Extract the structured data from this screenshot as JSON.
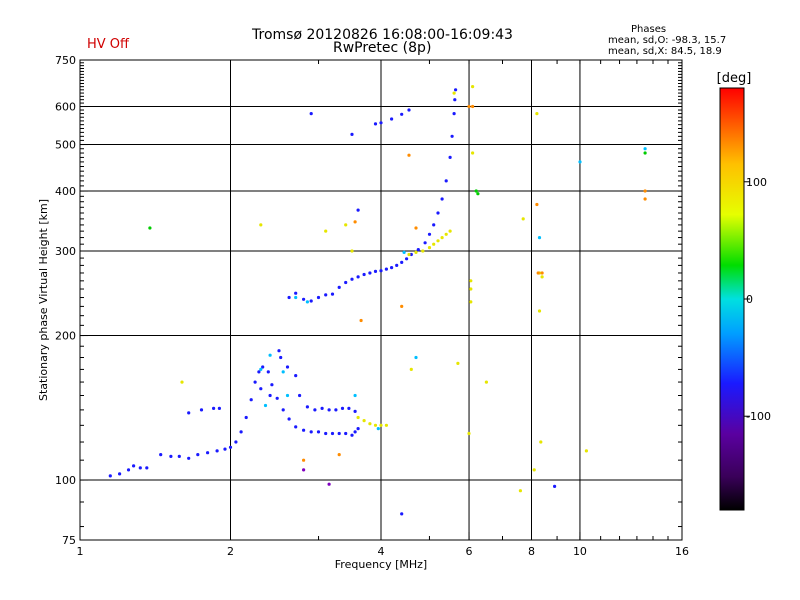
{
  "header": {
    "status": "HV Off",
    "title_line1": "Tromsø 20120826 16:08:00-16:09:43",
    "title_line2": "RwPretec (8p)",
    "phases_title": "Phases",
    "phases_o": "mean, sd,O: -98.3, 15.7",
    "phases_x": "mean, sd,X: 84.5, 18.9"
  },
  "chart_data": {
    "type": "scatter",
    "title": "Tromsø 20120826 16:08:00-16:09:43",
    "subtitle": "RwPretec (8p)",
    "xlabel": "Frequency [MHz]",
    "ylabel": "Stationary phase Virtual Height [km]",
    "x_scale": "log",
    "y_scale": "log",
    "xlim": [
      1,
      16
    ],
    "ylim": [
      75,
      750
    ],
    "x_ticks": [
      1,
      2,
      4,
      6,
      8,
      10,
      16
    ],
    "y_ticks": [
      75,
      100,
      200,
      300,
      400,
      500,
      600,
      750
    ],
    "grid_x": [
      2,
      4,
      6,
      8,
      10
    ],
    "grid_y": [
      100,
      200,
      300,
      400,
      500,
      600
    ],
    "colorbar": {
      "label": "[deg]",
      "min": -180,
      "max": 180,
      "ticks": [
        -100,
        0,
        100
      ]
    },
    "series": [
      {
        "color": "#1a1aff",
        "points": [
          [
            1.2,
            103
          ],
          [
            1.25,
            105
          ],
          [
            1.28,
            107
          ],
          [
            1.32,
            106
          ],
          [
            1.36,
            106
          ],
          [
            1.52,
            112
          ],
          [
            1.58,
            112
          ],
          [
            1.65,
            111
          ],
          [
            1.72,
            113
          ],
          [
            1.8,
            114
          ],
          [
            1.88,
            115
          ],
          [
            1.95,
            116
          ],
          [
            2.0,
            117
          ],
          [
            2.05,
            120
          ],
          [
            2.1,
            126
          ],
          [
            2.15,
            135
          ],
          [
            2.2,
            147
          ],
          [
            2.24,
            160
          ],
          [
            2.28,
            168
          ],
          [
            2.32,
            172
          ],
          [
            2.38,
            168
          ],
          [
            2.42,
            158
          ],
          [
            2.48,
            148
          ],
          [
            2.55,
            140
          ],
          [
            2.62,
            134
          ],
          [
            2.7,
            129
          ],
          [
            2.8,
            127
          ],
          [
            2.9,
            126
          ],
          [
            3.0,
            126
          ],
          [
            3.1,
            125
          ],
          [
            3.2,
            125
          ],
          [
            3.3,
            125
          ],
          [
            3.4,
            125
          ],
          [
            3.5,
            124
          ],
          [
            3.55,
            126
          ],
          [
            3.6,
            128
          ],
          [
            1.65,
            138
          ],
          [
            1.75,
            140
          ],
          [
            1.85,
            141
          ],
          [
            1.9,
            141
          ],
          [
            2.3,
            155
          ],
          [
            2.4,
            150
          ],
          [
            2.5,
            186
          ],
          [
            2.52,
            180
          ],
          [
            2.6,
            172
          ],
          [
            2.7,
            165
          ],
          [
            2.75,
            150
          ],
          [
            2.85,
            142
          ],
          [
            2.95,
            140
          ],
          [
            3.05,
            141
          ],
          [
            3.15,
            140
          ],
          [
            3.25,
            140
          ],
          [
            3.35,
            141
          ],
          [
            3.45,
            141
          ],
          [
            3.55,
            139
          ],
          [
            2.62,
            240
          ],
          [
            2.7,
            245
          ],
          [
            2.8,
            238
          ],
          [
            2.9,
            236
          ],
          [
            3.0,
            240
          ],
          [
            3.1,
            243
          ],
          [
            3.2,
            244
          ],
          [
            3.3,
            252
          ],
          [
            3.4,
            258
          ],
          [
            3.5,
            262
          ],
          [
            3.6,
            265
          ],
          [
            3.7,
            268
          ],
          [
            3.8,
            270
          ],
          [
            3.9,
            272
          ],
          [
            4.0,
            273
          ],
          [
            4.1,
            275
          ],
          [
            4.2,
            277
          ],
          [
            4.3,
            280
          ],
          [
            4.4,
            284
          ],
          [
            4.5,
            289
          ],
          [
            4.6,
            295
          ],
          [
            4.75,
            302
          ],
          [
            4.9,
            312
          ],
          [
            5.0,
            325
          ],
          [
            5.1,
            340
          ],
          [
            5.2,
            360
          ],
          [
            5.3,
            385
          ],
          [
            5.4,
            420
          ],
          [
            5.5,
            470
          ],
          [
            5.55,
            520
          ],
          [
            5.6,
            580
          ],
          [
            5.62,
            620
          ],
          [
            5.64,
            650
          ],
          [
            3.9,
            552
          ],
          [
            4.0,
            555
          ],
          [
            4.2,
            565
          ],
          [
            4.4,
            578
          ],
          [
            4.55,
            590
          ],
          [
            3.5,
            525
          ],
          [
            3.6,
            365
          ],
          [
            2.9,
            580
          ],
          [
            4.4,
            85
          ],
          [
            8.9,
            97
          ],
          [
            1.15,
            102
          ],
          [
            1.45,
            113
          ]
        ]
      },
      {
        "color": "#00bfff",
        "points": [
          [
            2.3,
            170
          ],
          [
            2.4,
            182
          ],
          [
            2.55,
            168
          ],
          [
            2.7,
            240
          ],
          [
            2.85,
            235
          ],
          [
            4.45,
            298
          ],
          [
            4.7,
            180
          ],
          [
            3.95,
            128
          ],
          [
            2.35,
            143
          ],
          [
            2.6,
            150
          ],
          [
            13.5,
            490
          ],
          [
            10.0,
            460
          ],
          [
            8.3,
            320
          ],
          [
            3.55,
            150
          ]
        ]
      },
      {
        "color": "#e6e600",
        "points": [
          [
            3.6,
            135
          ],
          [
            3.7,
            133
          ],
          [
            3.8,
            131
          ],
          [
            3.9,
            130
          ],
          [
            4.0,
            130
          ],
          [
            4.1,
            130
          ],
          [
            4.55,
            295
          ],
          [
            4.7,
            298
          ],
          [
            4.85,
            300
          ],
          [
            5.0,
            305
          ],
          [
            5.1,
            310
          ],
          [
            5.2,
            315
          ],
          [
            5.3,
            320
          ],
          [
            5.4,
            325
          ],
          [
            5.5,
            330
          ],
          [
            5.6,
            640
          ],
          [
            6.1,
            660
          ],
          [
            6.1,
            480
          ],
          [
            6.05,
            260
          ],
          [
            6.05,
            250
          ],
          [
            6.05,
            235
          ],
          [
            5.7,
            175
          ],
          [
            6.0,
            125
          ],
          [
            6.5,
            160
          ],
          [
            7.7,
            350
          ],
          [
            7.6,
            95
          ],
          [
            8.3,
            270
          ],
          [
            8.4,
            265
          ],
          [
            8.3,
            225
          ],
          [
            8.35,
            120
          ],
          [
            8.2,
            580
          ],
          [
            8.1,
            105
          ],
          [
            10.3,
            115
          ],
          [
            1.6,
            160
          ],
          [
            2.3,
            340
          ],
          [
            3.5,
            300
          ],
          [
            3.4,
            340
          ],
          [
            4.6,
            170
          ],
          [
            3.1,
            330
          ]
        ]
      },
      {
        "color": "#ff8c00",
        "points": [
          [
            4.55,
            475
          ],
          [
            6.1,
            600
          ],
          [
            8.2,
            375
          ],
          [
            8.25,
            270
          ],
          [
            8.4,
            270
          ],
          [
            13.5,
            385
          ],
          [
            13.5,
            400
          ],
          [
            3.65,
            215
          ],
          [
            3.55,
            345
          ],
          [
            4.7,
            335
          ],
          [
            2.8,
            110
          ],
          [
            3.3,
            113
          ],
          [
            4.4,
            230
          ],
          [
            6.0,
            600
          ]
        ]
      },
      {
        "color": "#00cc00",
        "points": [
          [
            1.38,
            335
          ],
          [
            6.2,
            400
          ],
          [
            6.25,
            395
          ],
          [
            13.5,
            480
          ]
        ]
      },
      {
        "color": "#8000c0",
        "points": [
          [
            2.8,
            105
          ],
          [
            3.15,
            98
          ]
        ]
      }
    ]
  }
}
